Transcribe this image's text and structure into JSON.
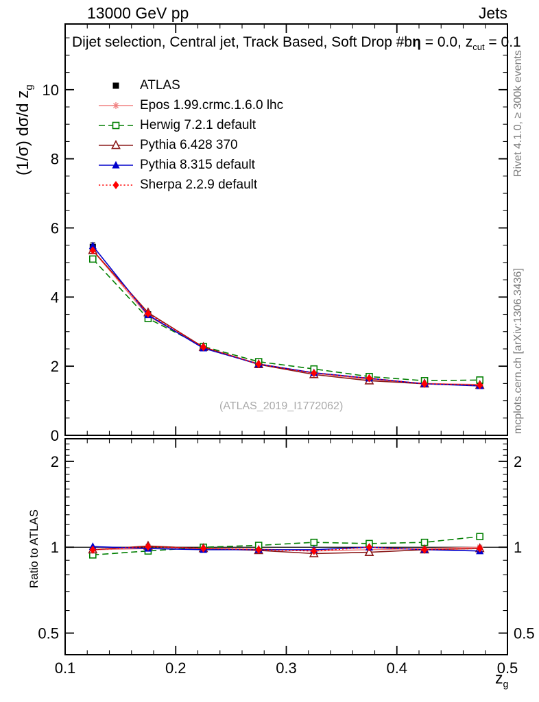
{
  "header": {
    "left": "13000 GeV pp",
    "right": "Jets"
  },
  "title": {
    "part1": "Dijet selection, Central jet, Track Based, Soft Drop #b",
    "eta": "η",
    "part2": " = 0.0, z",
    "sub": "cut",
    "part3": " = 0.1"
  },
  "axes": {
    "main_ylabel_text": "(1/σ) dσ/d z",
    "main_ylabel_sub": "g",
    "ratio_ylabel": "Ratio to ATLAS",
    "xlabel_text": "z",
    "xlabel_sub": "g"
  },
  "credits": {
    "top": "Rivet 4.1.0, ≥ 300k events",
    "bottom": "mcplots.cern.ch [arXiv:1306.3436]"
  },
  "watermark": "(ATLAS_2019_I1772062)",
  "chart_data": [
    {
      "type": "line",
      "panel": "main",
      "title": "Dijet selection, Central jet, Track Based, Soft Drop #bη = 0.0, z_cut = 0.1",
      "xlabel": "z_g",
      "ylabel": "(1/σ) dσ/d z_g",
      "xlim": [
        0.1,
        0.5
      ],
      "ylim": [
        0,
        11.9
      ],
      "yscale": "linear",
      "grid": false,
      "legend_position": "top-left",
      "x": [
        0.125,
        0.175,
        0.225,
        0.275,
        0.325,
        0.375,
        0.425,
        0.475
      ],
      "x_ticks": [
        0.1,
        0.2,
        0.3,
        0.4,
        0.5
      ],
      "x_tick_labels": [
        "0.1",
        "0.2",
        "0.3",
        "0.4",
        "0.5"
      ],
      "y_ticks": [
        0,
        2,
        4,
        6,
        8,
        10
      ],
      "y_tick_labels": [
        "0",
        "2",
        "4",
        "6",
        "8",
        "10"
      ],
      "series": [
        {
          "name": "ATLAS",
          "color": "#000000",
          "line": "none",
          "marker": "filled-square",
          "values": [
            5.45,
            3.5,
            2.57,
            2.1,
            1.85,
            1.65,
            1.52,
            1.47
          ],
          "errors": [
            0.12,
            0.07,
            0.05,
            0.04,
            0.04,
            0.04,
            0.04,
            0.05
          ]
        },
        {
          "name": "Epos 1.99.crmc.1.6.0 lhc",
          "color": "#f08080",
          "line": "solid",
          "marker": "open-star",
          "values": [
            5.35,
            3.45,
            2.55,
            2.07,
            1.8,
            1.62,
            1.5,
            1.47
          ]
        },
        {
          "name": "Herwig 7.2.1 default",
          "color": "#007f00",
          "line": "dashed",
          "marker": "open-square",
          "values": [
            5.1,
            3.38,
            2.57,
            2.13,
            1.92,
            1.7,
            1.58,
            1.6
          ]
        },
        {
          "name": "Pythia 6.428 370",
          "color": "#8b1a1a",
          "line": "solid",
          "marker": "open-triangle",
          "values": [
            5.35,
            3.55,
            2.55,
            2.05,
            1.76,
            1.58,
            1.49,
            1.45
          ]
        },
        {
          "name": "Pythia 8.315 default",
          "color": "#0000cc",
          "line": "solid",
          "marker": "filled-triangle",
          "values": [
            5.48,
            3.48,
            2.52,
            2.06,
            1.81,
            1.65,
            1.49,
            1.43
          ]
        },
        {
          "name": "Sherpa 2.2.9 default",
          "color": "#ff0000",
          "line": "dotted",
          "marker": "filled-diamond",
          "values": [
            5.35,
            3.52,
            2.55,
            2.06,
            1.8,
            1.65,
            1.49,
            1.45
          ]
        }
      ]
    },
    {
      "type": "line",
      "panel": "ratio",
      "ylabel": "Ratio to ATLAS",
      "xlim": [
        0.1,
        0.5
      ],
      "ylim": [
        0.42,
        2.4
      ],
      "yscale": "log",
      "grid": false,
      "reference_line": 1,
      "x": [
        0.125,
        0.175,
        0.225,
        0.275,
        0.325,
        0.375,
        0.425,
        0.475
      ],
      "x_ticks": [
        0.1,
        0.2,
        0.3,
        0.4,
        0.5
      ],
      "x_tick_labels": [
        "0.1",
        "0.2",
        "0.3",
        "0.4",
        "0.5"
      ],
      "y_ticks": [
        0.5,
        1,
        2
      ],
      "y_tick_labels": [
        "0.5",
        "1",
        "2"
      ],
      "series": [
        {
          "name": "Epos 1.99.crmc.1.6.0 lhc",
          "color": "#f08080",
          "line": "solid",
          "marker": "open-star",
          "values": [
            0.98,
            0.99,
            0.99,
            0.985,
            0.97,
            0.98,
            0.99,
            1.0
          ]
        },
        {
          "name": "Herwig 7.2.1 default",
          "color": "#007f00",
          "line": "dashed",
          "marker": "open-square",
          "values": [
            0.94,
            0.97,
            1.0,
            1.015,
            1.04,
            1.03,
            1.04,
            1.09
          ]
        },
        {
          "name": "Pythia 6.428 370",
          "color": "#8b1a1a",
          "line": "solid",
          "marker": "open-triangle",
          "values": [
            0.98,
            1.01,
            0.99,
            0.975,
            0.95,
            0.96,
            0.98,
            0.99
          ],
          "errors": [
            0.012,
            0.012,
            0.01,
            0.01,
            0.02,
            0.02,
            0.01,
            0.015
          ]
        },
        {
          "name": "Pythia 8.315 default",
          "color": "#0000cc",
          "line": "solid",
          "marker": "filled-triangle",
          "values": [
            1.005,
            0.99,
            0.98,
            0.98,
            0.98,
            1.0,
            0.98,
            0.97
          ]
        },
        {
          "name": "Sherpa 2.2.9 default",
          "color": "#ff0000",
          "line": "dotted",
          "marker": "filled-diamond",
          "values": [
            0.98,
            1.005,
            0.99,
            0.98,
            0.97,
            1.0,
            0.98,
            0.99
          ]
        }
      ]
    }
  ]
}
